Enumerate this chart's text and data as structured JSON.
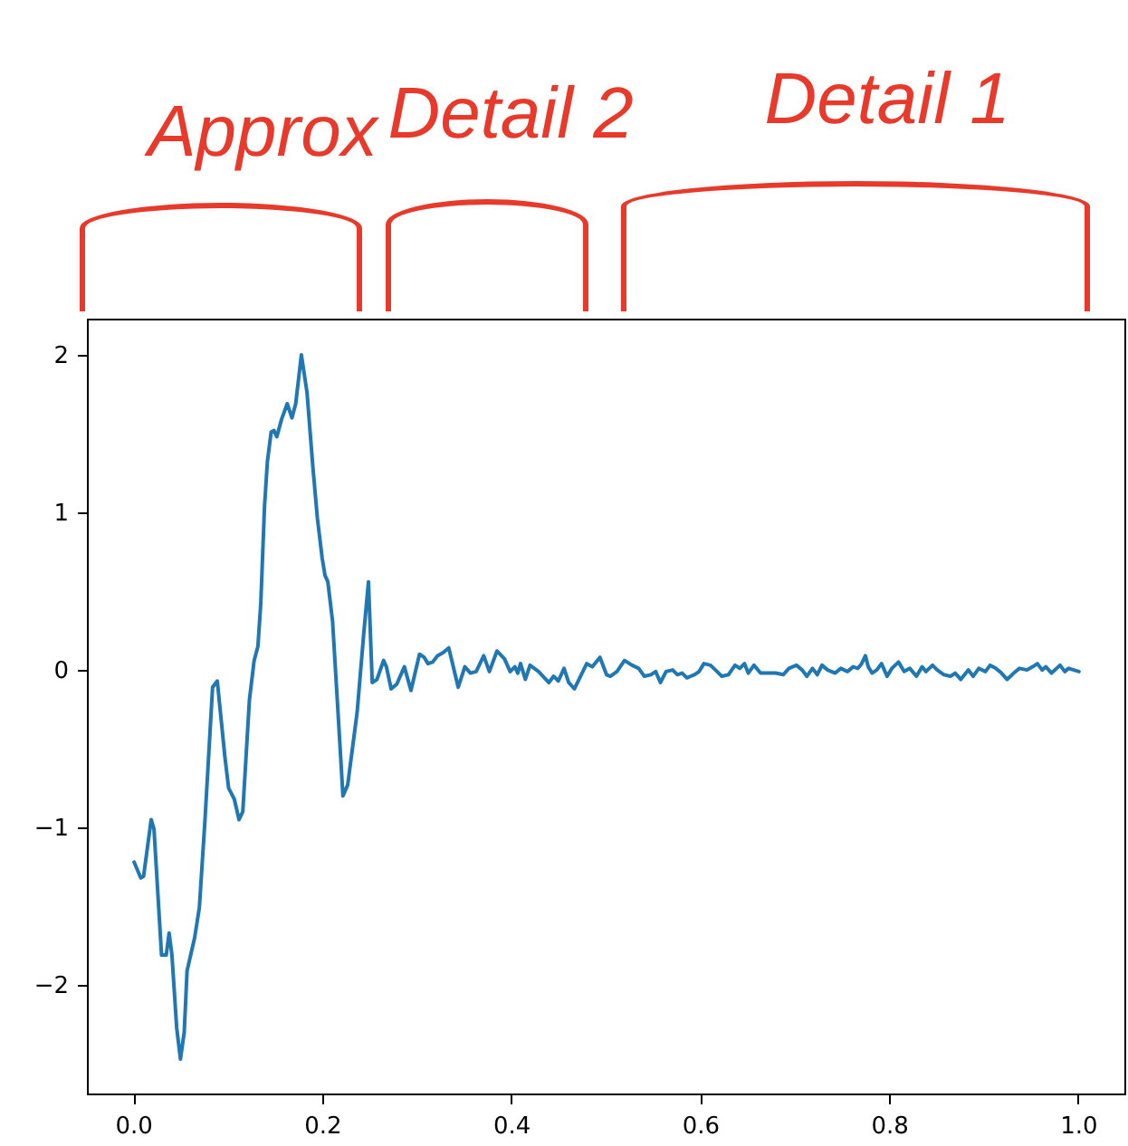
{
  "chart_data": {
    "type": "line",
    "annotations": [
      "Approx",
      "Detail 2",
      "Detail 1"
    ],
    "x": [
      0.0,
      0.007,
      0.01,
      0.018,
      0.021,
      0.029,
      0.034,
      0.037,
      0.04,
      0.045,
      0.049,
      0.053,
      0.056,
      0.064,
      0.069,
      0.075,
      0.083,
      0.088,
      0.096,
      0.1,
      0.106,
      0.111,
      0.115,
      0.122,
      0.127,
      0.131,
      0.134,
      0.138,
      0.141,
      0.145,
      0.148,
      0.151,
      0.156,
      0.162,
      0.167,
      0.171,
      0.177,
      0.183,
      0.189,
      0.194,
      0.199,
      0.202,
      0.205,
      0.21,
      0.215,
      0.221,
      0.226,
      0.231,
      0.236,
      0.243,
      0.248,
      0.252,
      0.257,
      0.264,
      0.267,
      0.272,
      0.278,
      0.286,
      0.293,
      0.302,
      0.307,
      0.311,
      0.316,
      0.321,
      0.327,
      0.333,
      0.343,
      0.35,
      0.356,
      0.362,
      0.37,
      0.376,
      0.384,
      0.392,
      0.398,
      0.403,
      0.406,
      0.409,
      0.414,
      0.419,
      0.428,
      0.439,
      0.444,
      0.449,
      0.455,
      0.46,
      0.466,
      0.479,
      0.485,
      0.493,
      0.5,
      0.504,
      0.511,
      0.519,
      0.527,
      0.534,
      0.54,
      0.547,
      0.552,
      0.557,
      0.563,
      0.57,
      0.575,
      0.58,
      0.585,
      0.593,
      0.598,
      0.603,
      0.61,
      0.617,
      0.622,
      0.629,
      0.636,
      0.641,
      0.646,
      0.65,
      0.656,
      0.663,
      0.671,
      0.679,
      0.687,
      0.693,
      0.701,
      0.707,
      0.712,
      0.718,
      0.723,
      0.728,
      0.734,
      0.742,
      0.748,
      0.755,
      0.761,
      0.766,
      0.77,
      0.774,
      0.777,
      0.781,
      0.786,
      0.791,
      0.797,
      0.802,
      0.809,
      0.815,
      0.821,
      0.828,
      0.834,
      0.838,
      0.845,
      0.85,
      0.857,
      0.864,
      0.869,
      0.875,
      0.883,
      0.888,
      0.894,
      0.901,
      0.906,
      0.912,
      0.918,
      0.924,
      0.931,
      0.937,
      0.945,
      0.951,
      0.956,
      0.961,
      0.965,
      0.971,
      0.98,
      0.985,
      0.989,
      1.0
    ],
    "values": [
      -1.21,
      -1.31,
      -1.3,
      -0.94,
      -1.0,
      -1.8,
      -1.8,
      -1.66,
      -1.8,
      -2.26,
      -2.46,
      -2.29,
      -1.9,
      -1.69,
      -1.5,
      -0.94,
      -0.1,
      -0.06,
      -0.54,
      -0.74,
      -0.81,
      -0.94,
      -0.89,
      -0.18,
      0.07,
      0.16,
      0.43,
      1.05,
      1.33,
      1.52,
      1.53,
      1.49,
      1.6,
      1.7,
      1.61,
      1.7,
      2.01,
      1.77,
      1.31,
      0.97,
      0.72,
      0.61,
      0.57,
      0.32,
      -0.18,
      -0.79,
      -0.72,
      -0.49,
      -0.26,
      0.24,
      0.57,
      -0.07,
      -0.05,
      0.07,
      0.03,
      -0.11,
      -0.08,
      0.03,
      -0.12,
      0.11,
      0.09,
      0.05,
      0.06,
      0.1,
      0.12,
      0.15,
      -0.1,
      0.03,
      -0.01,
      0.0,
      0.1,
      0.0,
      0.13,
      0.08,
      0.0,
      0.03,
      -0.01,
      0.05,
      -0.05,
      0.04,
      0.0,
      -0.07,
      -0.03,
      -0.06,
      0.02,
      -0.07,
      -0.11,
      0.05,
      0.03,
      0.09,
      -0.02,
      -0.03,
      0.0,
      0.07,
      0.04,
      0.02,
      -0.03,
      -0.02,
      0.0,
      -0.07,
      0.0,
      0.01,
      -0.02,
      -0.01,
      -0.04,
      -0.02,
      0.0,
      0.05,
      0.04,
      0.0,
      -0.03,
      -0.02,
      0.04,
      0.02,
      0.05,
      -0.01,
      0.04,
      -0.01,
      -0.01,
      -0.01,
      -0.02,
      0.02,
      0.04,
      0.01,
      -0.03,
      0.02,
      -0.02,
      0.04,
      0.01,
      -0.01,
      0.02,
      0.0,
      0.03,
      0.02,
      0.05,
      0.1,
      0.03,
      -0.01,
      0.01,
      0.05,
      -0.03,
      0.02,
      0.06,
      0.0,
      0.02,
      -0.03,
      0.03,
      0.0,
      0.04,
      0.01,
      -0.02,
      -0.03,
      -0.01,
      -0.05,
      0.01,
      -0.03,
      0.02,
      0.0,
      0.04,
      0.02,
      -0.01,
      -0.05,
      -0.01,
      0.02,
      0.01,
      0.03,
      0.05,
      0.01,
      0.03,
      -0.01,
      0.04,
      0.0,
      0.02,
      0.0
    ],
    "color": "#1f77b4",
    "xlim": [
      -0.05,
      1.05
    ],
    "xticks": [
      {
        "value": 0,
        "label": "0.0"
      },
      {
        "value": 0.2,
        "label": "0.2"
      },
      {
        "value": 0.4,
        "label": "0.4"
      },
      {
        "value": 0.6,
        "label": "0.6"
      },
      {
        "value": 0.8,
        "label": "0.8"
      },
      {
        "value": 1,
        "label": "1.0"
      }
    ],
    "ylim": [
      -2.69,
      2.24
    ],
    "yticks": [
      {
        "value": -2,
        "label": "−2"
      },
      {
        "value": -1,
        "label": "−1"
      },
      0,
      1,
      2
    ],
    "legend": false
  }
}
